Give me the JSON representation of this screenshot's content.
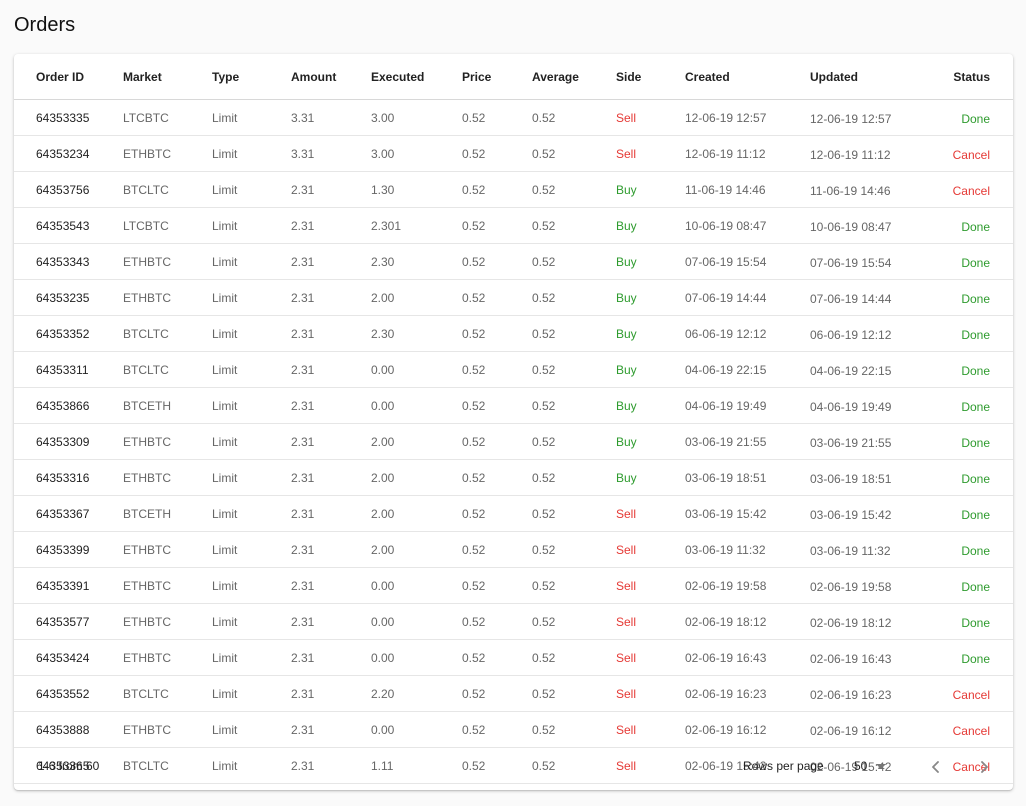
{
  "page": {
    "title": "Orders"
  },
  "colors": {
    "sell": "#e53935",
    "buy": "#2e9b2e",
    "done": "#2e9b2e",
    "cancel": "#e53935"
  },
  "table": {
    "columns": [
      "Order ID",
      "Market",
      "Type",
      "Amount",
      "Executed",
      "Price",
      "Average",
      "Side",
      "Created",
      "Updated",
      "Status"
    ],
    "rows": [
      {
        "id": "64353335",
        "market": "LTCBTC",
        "type": "Limit",
        "amount": "3.31",
        "executed": "3.00",
        "price": "0.52",
        "average": "0.52",
        "side": "Sell",
        "created": "12-06-19 12:57",
        "updated": "12-06-19 12:57",
        "status": "Done"
      },
      {
        "id": "64353234",
        "market": "ETHBTC",
        "type": "Limit",
        "amount": "3.31",
        "executed": "3.00",
        "price": "0.52",
        "average": "0.52",
        "side": "Sell",
        "created": "12-06-19 11:12",
        "updated": "12-06-19 11:12",
        "status": "Cancel"
      },
      {
        "id": "64353756",
        "market": "BTCLTC",
        "type": "Limit",
        "amount": "2.31",
        "executed": "1.30",
        "price": "0.52",
        "average": "0.52",
        "side": "Buy",
        "created": "11-06-19 14:46",
        "updated": "11-06-19 14:46",
        "status": "Cancel"
      },
      {
        "id": "64353543",
        "market": "LTCBTC",
        "type": "Limit",
        "amount": "2.31",
        "executed": "2.301",
        "price": "0.52",
        "average": "0.52",
        "side": "Buy",
        "created": "10-06-19 08:47",
        "updated": "10-06-19 08:47",
        "status": "Done"
      },
      {
        "id": "64353343",
        "market": "ETHBTC",
        "type": "Limit",
        "amount": "2.31",
        "executed": "2.30",
        "price": "0.52",
        "average": "0.52",
        "side": "Buy",
        "created": "07-06-19 15:54",
        "updated": "07-06-19 15:54",
        "status": "Done"
      },
      {
        "id": "64353235",
        "market": "ETHBTC",
        "type": "Limit",
        "amount": "2.31",
        "executed": "2.00",
        "price": "0.52",
        "average": "0.52",
        "side": "Buy",
        "created": "07-06-19 14:44",
        "updated": "07-06-19 14:44",
        "status": "Done"
      },
      {
        "id": "64353352",
        "market": "BTCLTC",
        "type": "Limit",
        "amount": "2.31",
        "executed": "2.30",
        "price": "0.52",
        "average": "0.52",
        "side": "Buy",
        "created": "06-06-19 12:12",
        "updated": "06-06-19 12:12",
        "status": "Done"
      },
      {
        "id": "64353311",
        "market": "BTCLTC",
        "type": "Limit",
        "amount": "2.31",
        "executed": "0.00",
        "price": "0.52",
        "average": "0.52",
        "side": "Buy",
        "created": "04-06-19 22:15",
        "updated": "04-06-19 22:15",
        "status": "Done"
      },
      {
        "id": "64353866",
        "market": "BTCETH",
        "type": "Limit",
        "amount": "2.31",
        "executed": "0.00",
        "price": "0.52",
        "average": "0.52",
        "side": "Buy",
        "created": "04-06-19 19:49",
        "updated": "04-06-19 19:49",
        "status": "Done"
      },
      {
        "id": "64353309",
        "market": "ETHBTC",
        "type": "Limit",
        "amount": "2.31",
        "executed": "2.00",
        "price": "0.52",
        "average": "0.52",
        "side": "Buy",
        "created": "03-06-19 21:55",
        "updated": "03-06-19 21:55",
        "status": "Done"
      },
      {
        "id": "64353316",
        "market": "ETHBTC",
        "type": "Limit",
        "amount": "2.31",
        "executed": "2.00",
        "price": "0.52",
        "average": "0.52",
        "side": "Buy",
        "created": "03-06-19 18:51",
        "updated": "03-06-19 18:51",
        "status": "Done"
      },
      {
        "id": "64353367",
        "market": "BTCETH",
        "type": "Limit",
        "amount": "2.31",
        "executed": "2.00",
        "price": "0.52",
        "average": "0.52",
        "side": "Sell",
        "created": "03-06-19 15:42",
        "updated": "03-06-19 15:42",
        "status": "Done"
      },
      {
        "id": "64353399",
        "market": "ETHBTC",
        "type": "Limit",
        "amount": "2.31",
        "executed": "2.00",
        "price": "0.52",
        "average": "0.52",
        "side": "Sell",
        "created": "03-06-19 11:32",
        "updated": "03-06-19 11:32",
        "status": "Done"
      },
      {
        "id": "64353391",
        "market": "ETHBTC",
        "type": "Limit",
        "amount": "2.31",
        "executed": "0.00",
        "price": "0.52",
        "average": "0.52",
        "side": "Sell",
        "created": "02-06-19 19:58",
        "updated": "02-06-19 19:58",
        "status": "Done"
      },
      {
        "id": "64353577",
        "market": "ETHBTC",
        "type": "Limit",
        "amount": "2.31",
        "executed": "0.00",
        "price": "0.52",
        "average": "0.52",
        "side": "Sell",
        "created": "02-06-19 18:12",
        "updated": "02-06-19 18:12",
        "status": "Done"
      },
      {
        "id": "64353424",
        "market": "ETHBTC",
        "type": "Limit",
        "amount": "2.31",
        "executed": "0.00",
        "price": "0.52",
        "average": "0.52",
        "side": "Sell",
        "created": "02-06-19 16:43",
        "updated": "02-06-19 16:43",
        "status": "Done"
      },
      {
        "id": "64353552",
        "market": "BTCLTC",
        "type": "Limit",
        "amount": "2.31",
        "executed": "2.20",
        "price": "0.52",
        "average": "0.52",
        "side": "Sell",
        "created": "02-06-19 16:23",
        "updated": "02-06-19 16:23",
        "status": "Cancel"
      },
      {
        "id": "64353888",
        "market": "ETHBTC",
        "type": "Limit",
        "amount": "2.31",
        "executed": "0.00",
        "price": "0.52",
        "average": "0.52",
        "side": "Sell",
        "created": "02-06-19 16:12",
        "updated": "02-06-19 16:12",
        "status": "Cancel"
      },
      {
        "id": "64353365",
        "market": "BTCLTC",
        "type": "Limit",
        "amount": "2.31",
        "executed": "1.11",
        "price": "0.52",
        "average": "0.52",
        "side": "Sell",
        "created": "02-06-19 15:42",
        "updated": "02-06-19 15:42",
        "status": "Cancel"
      }
    ]
  },
  "pagination": {
    "range_text": "1-6 from 60",
    "rows_per_page_label": "Rows per page",
    "rows_per_page_value": "50",
    "icons": {
      "caret": "caret-down-icon",
      "prev": "chevron-left-icon",
      "next": "chevron-right-icon"
    }
  }
}
